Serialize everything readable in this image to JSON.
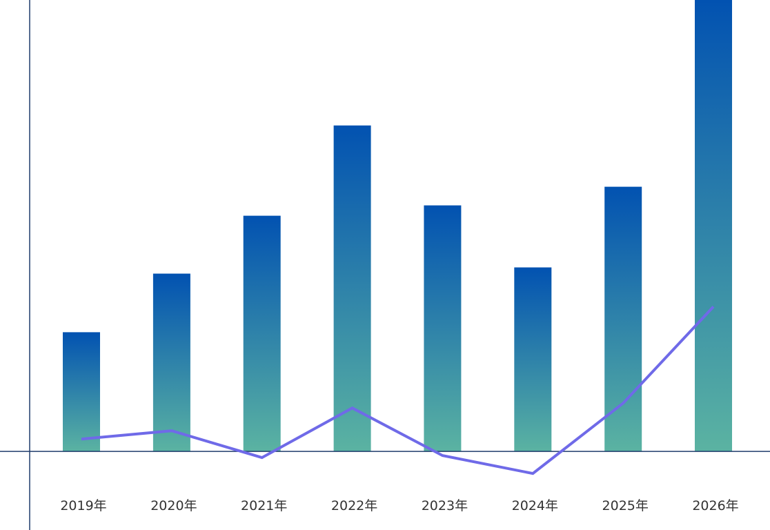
{
  "chart_data": {
    "type": "bar",
    "title": "",
    "xlabel": "",
    "ylabel": "",
    "categories": [
      "2019年",
      "2020年",
      "2021年",
      "2022年",
      "2023年",
      "2024年",
      "2025年",
      "2026年"
    ],
    "series": [
      {
        "type": "bar",
        "values": [
          173,
          258,
          342,
          473,
          357,
          267,
          384,
          655
        ]
      },
      {
        "type": "line",
        "values": [
          18,
          30,
          -9,
          63,
          -6,
          -32,
          70,
          210
        ]
      }
    ],
    "ylim": [
      -114,
      655
    ],
    "grid": false,
    "legend": "none",
    "colors": {
      "bar_top": "#0252b1",
      "bar_bottom": "#5bb3a2",
      "line": "#6f6ae8",
      "axis": "#1f3b6b"
    }
  }
}
